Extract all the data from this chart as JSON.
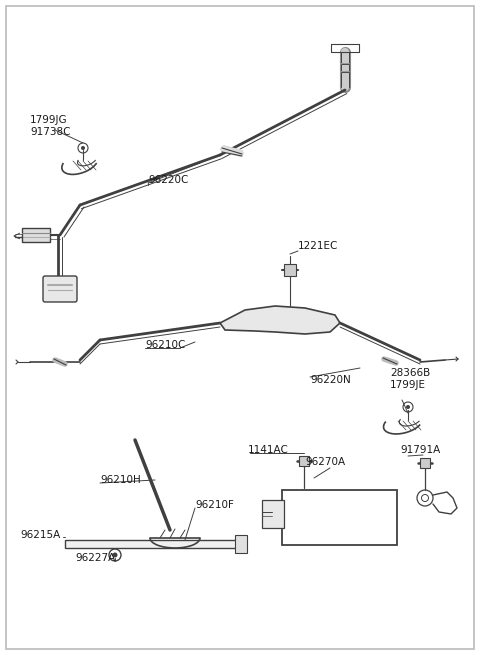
{
  "bg_color": "#ffffff",
  "line_color": "#404040",
  "text_color": "#1a1a1a",
  "fig_w": 4.8,
  "fig_h": 6.55,
  "dpi": 100,
  "labels": {
    "1799JG_91738C": "1799JG\n91738C",
    "96220C": "96220C",
    "1221EC": "1221EC",
    "96210C": "96210C",
    "96220N": "96220N",
    "28366B_1799JE": "28366B\n1799JE",
    "96210H": "96210H",
    "96210F": "96210F",
    "96215A": "96215A",
    "96227A": "96227A",
    "96270A": "96270A",
    "1141AC": "1141AC",
    "91791A": "91791A"
  }
}
